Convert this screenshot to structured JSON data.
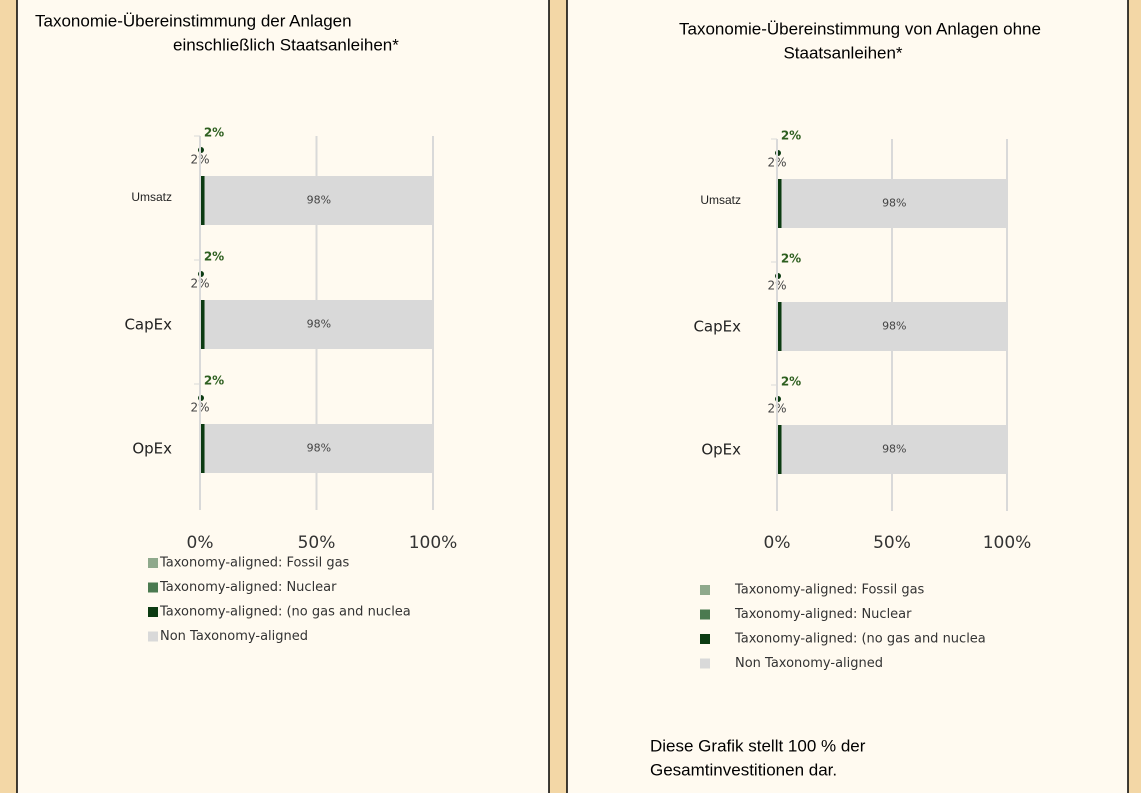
{
  "chart_data": [
    {
      "type": "bar",
      "orientation": "horizontal",
      "stacked": true,
      "title": [
        "Taxonomie-Übereinstimmung der Anlagen",
        "einschließlich Staatsanleihen*"
      ],
      "categories": [
        "Umsatz",
        "CapEx",
        "OpEx"
      ],
      "series": [
        {
          "name": "Taxonomy-aligned: Fossil gas",
          "color": "#8fa98c",
          "values": [
            0,
            0,
            0
          ]
        },
        {
          "name": "Taxonomy-aligned: Nuclear",
          "color": "#4b7a50",
          "values": [
            0,
            0,
            0
          ]
        },
        {
          "name": "Taxonomy-aligned: (no gas and nuclea",
          "color": "#0c3b12",
          "values": [
            2,
            2,
            2
          ],
          "value_labels": [
            "2%",
            "2%",
            "2%"
          ]
        },
        {
          "name": "Non Taxonomy-aligned",
          "color": "#d9d9d9",
          "values": [
            98,
            98,
            98
          ],
          "value_labels": [
            "98%",
            "98%",
            "98%"
          ]
        }
      ],
      "annotations": [
        "2%",
        "2%",
        "2%"
      ],
      "xlim": [
        0,
        100
      ],
      "xticks": [
        {
          "value": 0,
          "label": "0%"
        },
        {
          "value": 50,
          "label": "50%"
        },
        {
          "value": 100,
          "label": "100%"
        }
      ],
      "grid": true
    },
    {
      "type": "bar",
      "orientation": "horizontal",
      "stacked": true,
      "title": [
        "Taxonomie-Übereinstimmung von Anlagen ohne",
        "Staatsanleihen*"
      ],
      "categories": [
        "Umsatz",
        "CapEx",
        "OpEx"
      ],
      "series": [
        {
          "name": "Taxonomy-aligned: Fossil gas",
          "color": "#8fa98c",
          "values": [
            0,
            0,
            0
          ]
        },
        {
          "name": "Taxonomy-aligned: Nuclear",
          "color": "#4b7a50",
          "values": [
            0,
            0,
            0
          ]
        },
        {
          "name": "Taxonomy-aligned: (no gas and nuclea",
          "color": "#0c3b12",
          "values": [
            2,
            2,
            2
          ],
          "value_labels": [
            "2%",
            "2%",
            "2%"
          ]
        },
        {
          "name": "Non Taxonomy-aligned",
          "color": "#d9d9d9",
          "values": [
            98,
            98,
            98
          ],
          "value_labels": [
            "98%",
            "98%",
            "98%"
          ]
        }
      ],
      "annotations": [
        "2%",
        "2%",
        "2%"
      ],
      "note": [
        "Diese Grafik stellt 100 % der",
        "Gesamtinvestitionen dar."
      ],
      "xlim": [
        0,
        100
      ],
      "xticks": [
        {
          "value": 0,
          "label": "0%"
        },
        {
          "value": 50,
          "label": "50%"
        },
        {
          "value": 100,
          "label": "100%"
        }
      ],
      "grid": true
    }
  ]
}
